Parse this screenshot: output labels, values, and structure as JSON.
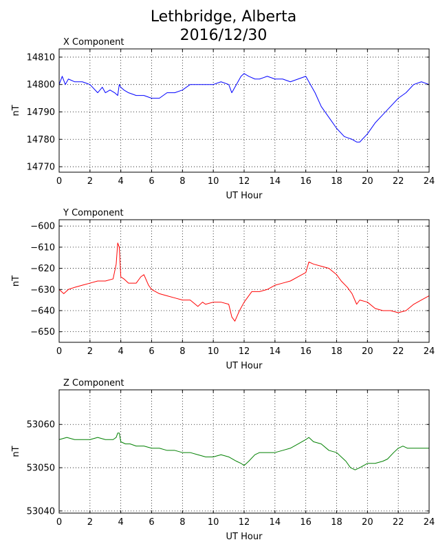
{
  "title_line_1": "Lethbridge, Alberta",
  "title_line_2": "2016/12/30",
  "chart_data": [
    {
      "type": "line",
      "panel_title": "X Component",
      "xlabel": "UT Hour",
      "ylabel": "nT",
      "xlim": [
        0,
        24
      ],
      "ylim": [
        14768,
        14813
      ],
      "xticks": [
        0,
        2,
        4,
        6,
        8,
        10,
        12,
        14,
        16,
        18,
        20,
        22,
        24
      ],
      "yticks": [
        14770,
        14780,
        14790,
        14800,
        14810
      ],
      "grid": true,
      "color": "#0000ff",
      "series": [
        {
          "x": [
            0,
            0.2,
            0.4,
            0.6,
            1.0,
            1.5,
            2.0,
            2.5,
            2.8,
            3.0,
            3.3,
            3.6,
            3.8,
            3.9,
            4.0,
            4.2,
            4.5,
            5.0,
            5.5,
            6.0,
            6.5,
            7.0,
            7.5,
            8.0,
            8.5,
            9.0,
            9.5,
            10.0,
            10.5,
            11.0,
            11.2,
            11.5,
            11.8,
            12.0,
            12.3,
            12.7,
            13.0,
            13.5,
            14.0,
            14.5,
            15.0,
            15.5,
            16.0,
            16.3,
            16.6,
            17.0,
            17.5,
            18.0,
            18.5,
            19.0,
            19.3,
            19.5,
            20.0,
            20.5,
            21.0,
            21.5,
            22.0,
            22.5,
            23.0,
            23.5,
            24.0
          ],
          "y": [
            14800,
            14803,
            14800,
            14802,
            14801,
            14801,
            14800,
            14797,
            14799,
            14797,
            14798,
            14797,
            14796,
            14800,
            14799,
            14798,
            14797,
            14796,
            14796,
            14795,
            14795,
            14797,
            14797,
            14798,
            14800,
            14800,
            14800,
            14800,
            14801,
            14800,
            14797,
            14800,
            14803,
            14804,
            14803,
            14802,
            14802,
            14803,
            14802,
            14802,
            14801,
            14802,
            14803,
            14800,
            14797,
            14792,
            14788,
            14784,
            14781,
            14780,
            14779,
            14779,
            14782,
            14786,
            14789,
            14792,
            14795,
            14797,
            14800,
            14801,
            14800
          ]
        }
      ]
    },
    {
      "type": "line",
      "panel_title": "Y Component",
      "xlabel": "UT Hour",
      "ylabel": "nT",
      "xlim": [
        0,
        24
      ],
      "ylim": [
        -655,
        -597
      ],
      "xticks": [
        0,
        2,
        4,
        6,
        8,
        10,
        12,
        14,
        16,
        18,
        20,
        22,
        24
      ],
      "yticks": [
        -650,
        -640,
        -630,
        -620,
        -610,
        -600
      ],
      "grid": true,
      "color": "#ff0000",
      "series": [
        {
          "x": [
            0,
            0.3,
            0.6,
            1.0,
            1.5,
            2.0,
            2.5,
            3.0,
            3.5,
            3.7,
            3.8,
            3.9,
            4.0,
            4.2,
            4.5,
            5.0,
            5.3,
            5.5,
            5.8,
            6.0,
            6.5,
            7.0,
            7.5,
            8.0,
            8.5,
            9.0,
            9.3,
            9.5,
            10.0,
            10.5,
            11.0,
            11.2,
            11.4,
            11.7,
            12.0,
            12.5,
            13.0,
            13.5,
            14.0,
            14.5,
            15.0,
            15.5,
            16.0,
            16.2,
            16.5,
            17.0,
            17.5,
            18.0,
            18.3,
            18.7,
            19.0,
            19.3,
            19.5,
            20.0,
            20.5,
            21.0,
            21.5,
            22.0,
            22.5,
            23.0,
            23.5,
            24.0
          ],
          "y": [
            -630,
            -632,
            -630,
            -629,
            -628,
            -627,
            -626,
            -626,
            -625,
            -618,
            -608,
            -610,
            -624,
            -625,
            -627,
            -627,
            -624,
            -623,
            -628,
            -630,
            -632,
            -633,
            -634,
            -635,
            -635,
            -638,
            -636,
            -637,
            -636,
            -636,
            -637,
            -643,
            -645,
            -640,
            -636,
            -631,
            -631,
            -630,
            -628,
            -627,
            -626,
            -624,
            -622,
            -617,
            -618,
            -619,
            -620,
            -623,
            -626,
            -629,
            -632,
            -637,
            -635,
            -636,
            -639,
            -640,
            -640,
            -641,
            -640,
            -637,
            -635,
            -633
          ]
        }
      ]
    },
    {
      "type": "line",
      "panel_title": "Z Component",
      "xlabel": "UT Hour",
      "ylabel": "nT",
      "xlim": [
        0,
        24
      ],
      "ylim": [
        53039.5,
        53068
      ],
      "xticks": [
        0,
        2,
        4,
        6,
        8,
        10,
        12,
        14,
        16,
        18,
        20,
        22,
        24
      ],
      "yticks": [
        53040,
        53050,
        53060
      ],
      "grid": true,
      "color": "#008000",
      "series": [
        {
          "x": [
            0,
            0.5,
            1.0,
            1.5,
            2.0,
            2.5,
            3.0,
            3.5,
            3.7,
            3.8,
            3.9,
            4.0,
            4.3,
            4.6,
            5.0,
            5.5,
            6.0,
            6.5,
            7.0,
            7.5,
            8.0,
            8.5,
            9.0,
            9.5,
            10.0,
            10.5,
            11.0,
            11.5,
            11.8,
            12.0,
            12.3,
            12.7,
            13.0,
            13.5,
            14.0,
            14.5,
            15.0,
            15.5,
            16.0,
            16.2,
            16.5,
            17.0,
            17.5,
            18.0,
            18.3,
            18.6,
            18.9,
            19.2,
            19.5,
            20.0,
            20.5,
            21.0,
            21.3,
            21.7,
            22.0,
            22.3,
            22.6,
            23.0,
            23.5,
            24.0
          ],
          "y": [
            53056.5,
            53057,
            53056.5,
            53056.5,
            53056.5,
            53057,
            53056.5,
            53056.5,
            53057,
            53058,
            53058,
            53056,
            53055.5,
            53055.5,
            53055,
            53055,
            53054.5,
            53054.5,
            53054,
            53054,
            53053.5,
            53053.5,
            53053,
            53052.5,
            53052.5,
            53053,
            53052.5,
            53051.5,
            53051,
            53050.5,
            53051.5,
            53053,
            53053.5,
            53053.5,
            53053.5,
            53054,
            53054.5,
            53055.5,
            53056.5,
            53057,
            53056,
            53055.5,
            53054,
            53053.5,
            53052.5,
            53051.5,
            53050,
            53049.5,
            53050,
            53051,
            53051,
            53051.5,
            53052,
            53053.5,
            53054.5,
            53055,
            53054.5,
            53054.5,
            53054.5,
            53054.5
          ]
        }
      ]
    }
  ]
}
